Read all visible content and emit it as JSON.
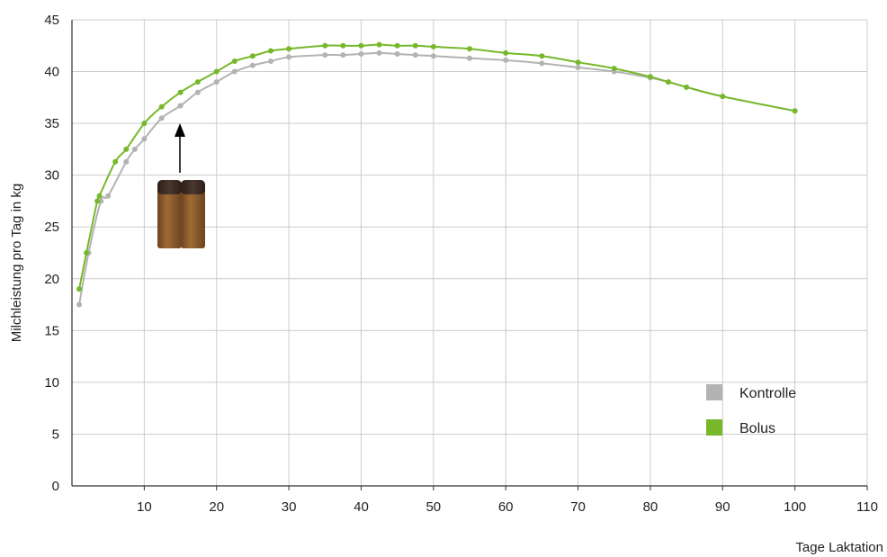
{
  "chart_data": {
    "type": "line",
    "xlabel": "Tage Laktation",
    "ylabel": "Milchleistung pro Tag in kg",
    "xlim": [
      0,
      110
    ],
    "ylim": [
      0,
      45
    ],
    "x_ticks": [
      "10",
      "20",
      "30",
      "40",
      "50",
      "60",
      "70",
      "80",
      "90",
      "100",
      "110"
    ],
    "y_ticks": [
      "0",
      "5",
      "10",
      "15",
      "20",
      "25",
      "30",
      "35",
      "40",
      "45"
    ],
    "grid": true,
    "legend_position": "bottom-right",
    "series": [
      {
        "name": "Kontrolle",
        "color": "#b3b3b3",
        "points": [
          [
            1,
            17.5
          ],
          [
            2.3,
            22.5
          ],
          [
            4,
            27.5
          ],
          [
            5,
            28.0
          ],
          [
            7.5,
            31.3
          ],
          [
            8.7,
            32.5
          ],
          [
            10,
            33.5
          ],
          [
            12.4,
            35.5
          ],
          [
            15,
            36.7
          ],
          [
            17.4,
            38.0
          ],
          [
            20,
            39.0
          ],
          [
            22.5,
            40.0
          ],
          [
            25,
            40.6
          ],
          [
            27.5,
            41.0
          ],
          [
            30,
            41.4
          ],
          [
            35,
            41.6
          ],
          [
            37.5,
            41.6
          ],
          [
            40,
            41.7
          ],
          [
            42.5,
            41.8
          ],
          [
            45,
            41.7
          ],
          [
            47.5,
            41.6
          ],
          [
            50,
            41.5
          ],
          [
            55,
            41.3
          ],
          [
            60,
            41.1
          ],
          [
            65,
            40.8
          ],
          [
            70,
            40.4
          ],
          [
            75,
            40.0
          ],
          [
            80,
            39.4
          ],
          [
            82.5,
            39.0
          ],
          [
            85,
            38.5
          ],
          [
            90,
            37.6
          ],
          [
            100,
            36.2
          ]
        ]
      },
      {
        "name": "Bolus",
        "color": "#76b82a",
        "points": [
          [
            1,
            19.0
          ],
          [
            2,
            22.5
          ],
          [
            3.5,
            27.5
          ],
          [
            3.8,
            28.0
          ],
          [
            6,
            31.3
          ],
          [
            7.5,
            32.5
          ],
          [
            10,
            35.0
          ],
          [
            12.4,
            36.6
          ],
          [
            15,
            38.0
          ],
          [
            17.4,
            39.0
          ],
          [
            20,
            40.0
          ],
          [
            22.5,
            41.0
          ],
          [
            25,
            41.5
          ],
          [
            27.5,
            42.0
          ],
          [
            30,
            42.2
          ],
          [
            35,
            42.5
          ],
          [
            37.5,
            42.5
          ],
          [
            40,
            42.5
          ],
          [
            42.5,
            42.6
          ],
          [
            45,
            42.5
          ],
          [
            47.5,
            42.5
          ],
          [
            50,
            42.4
          ],
          [
            55,
            42.2
          ],
          [
            60,
            41.8
          ],
          [
            65,
            41.5
          ],
          [
            70,
            40.9
          ],
          [
            75,
            40.3
          ],
          [
            80,
            39.5
          ],
          [
            82.5,
            39.0
          ],
          [
            85,
            38.5
          ],
          [
            90,
            37.6
          ],
          [
            100,
            36.2
          ]
        ]
      }
    ],
    "annotation": {
      "type": "arrow-with-bolus-image",
      "x": 15,
      "description_icon": "bolus-capsules-icon"
    }
  },
  "legend": {
    "items": [
      {
        "label": "Kontrolle",
        "color": "#b3b3b3"
      },
      {
        "label": "Bolus",
        "color": "#76b82a"
      }
    ]
  },
  "colors": {
    "grid": "#cccccc",
    "axis": "#333333",
    "capsule_body": "#8b5a2b",
    "capsule_cap": "#3a2a22"
  }
}
